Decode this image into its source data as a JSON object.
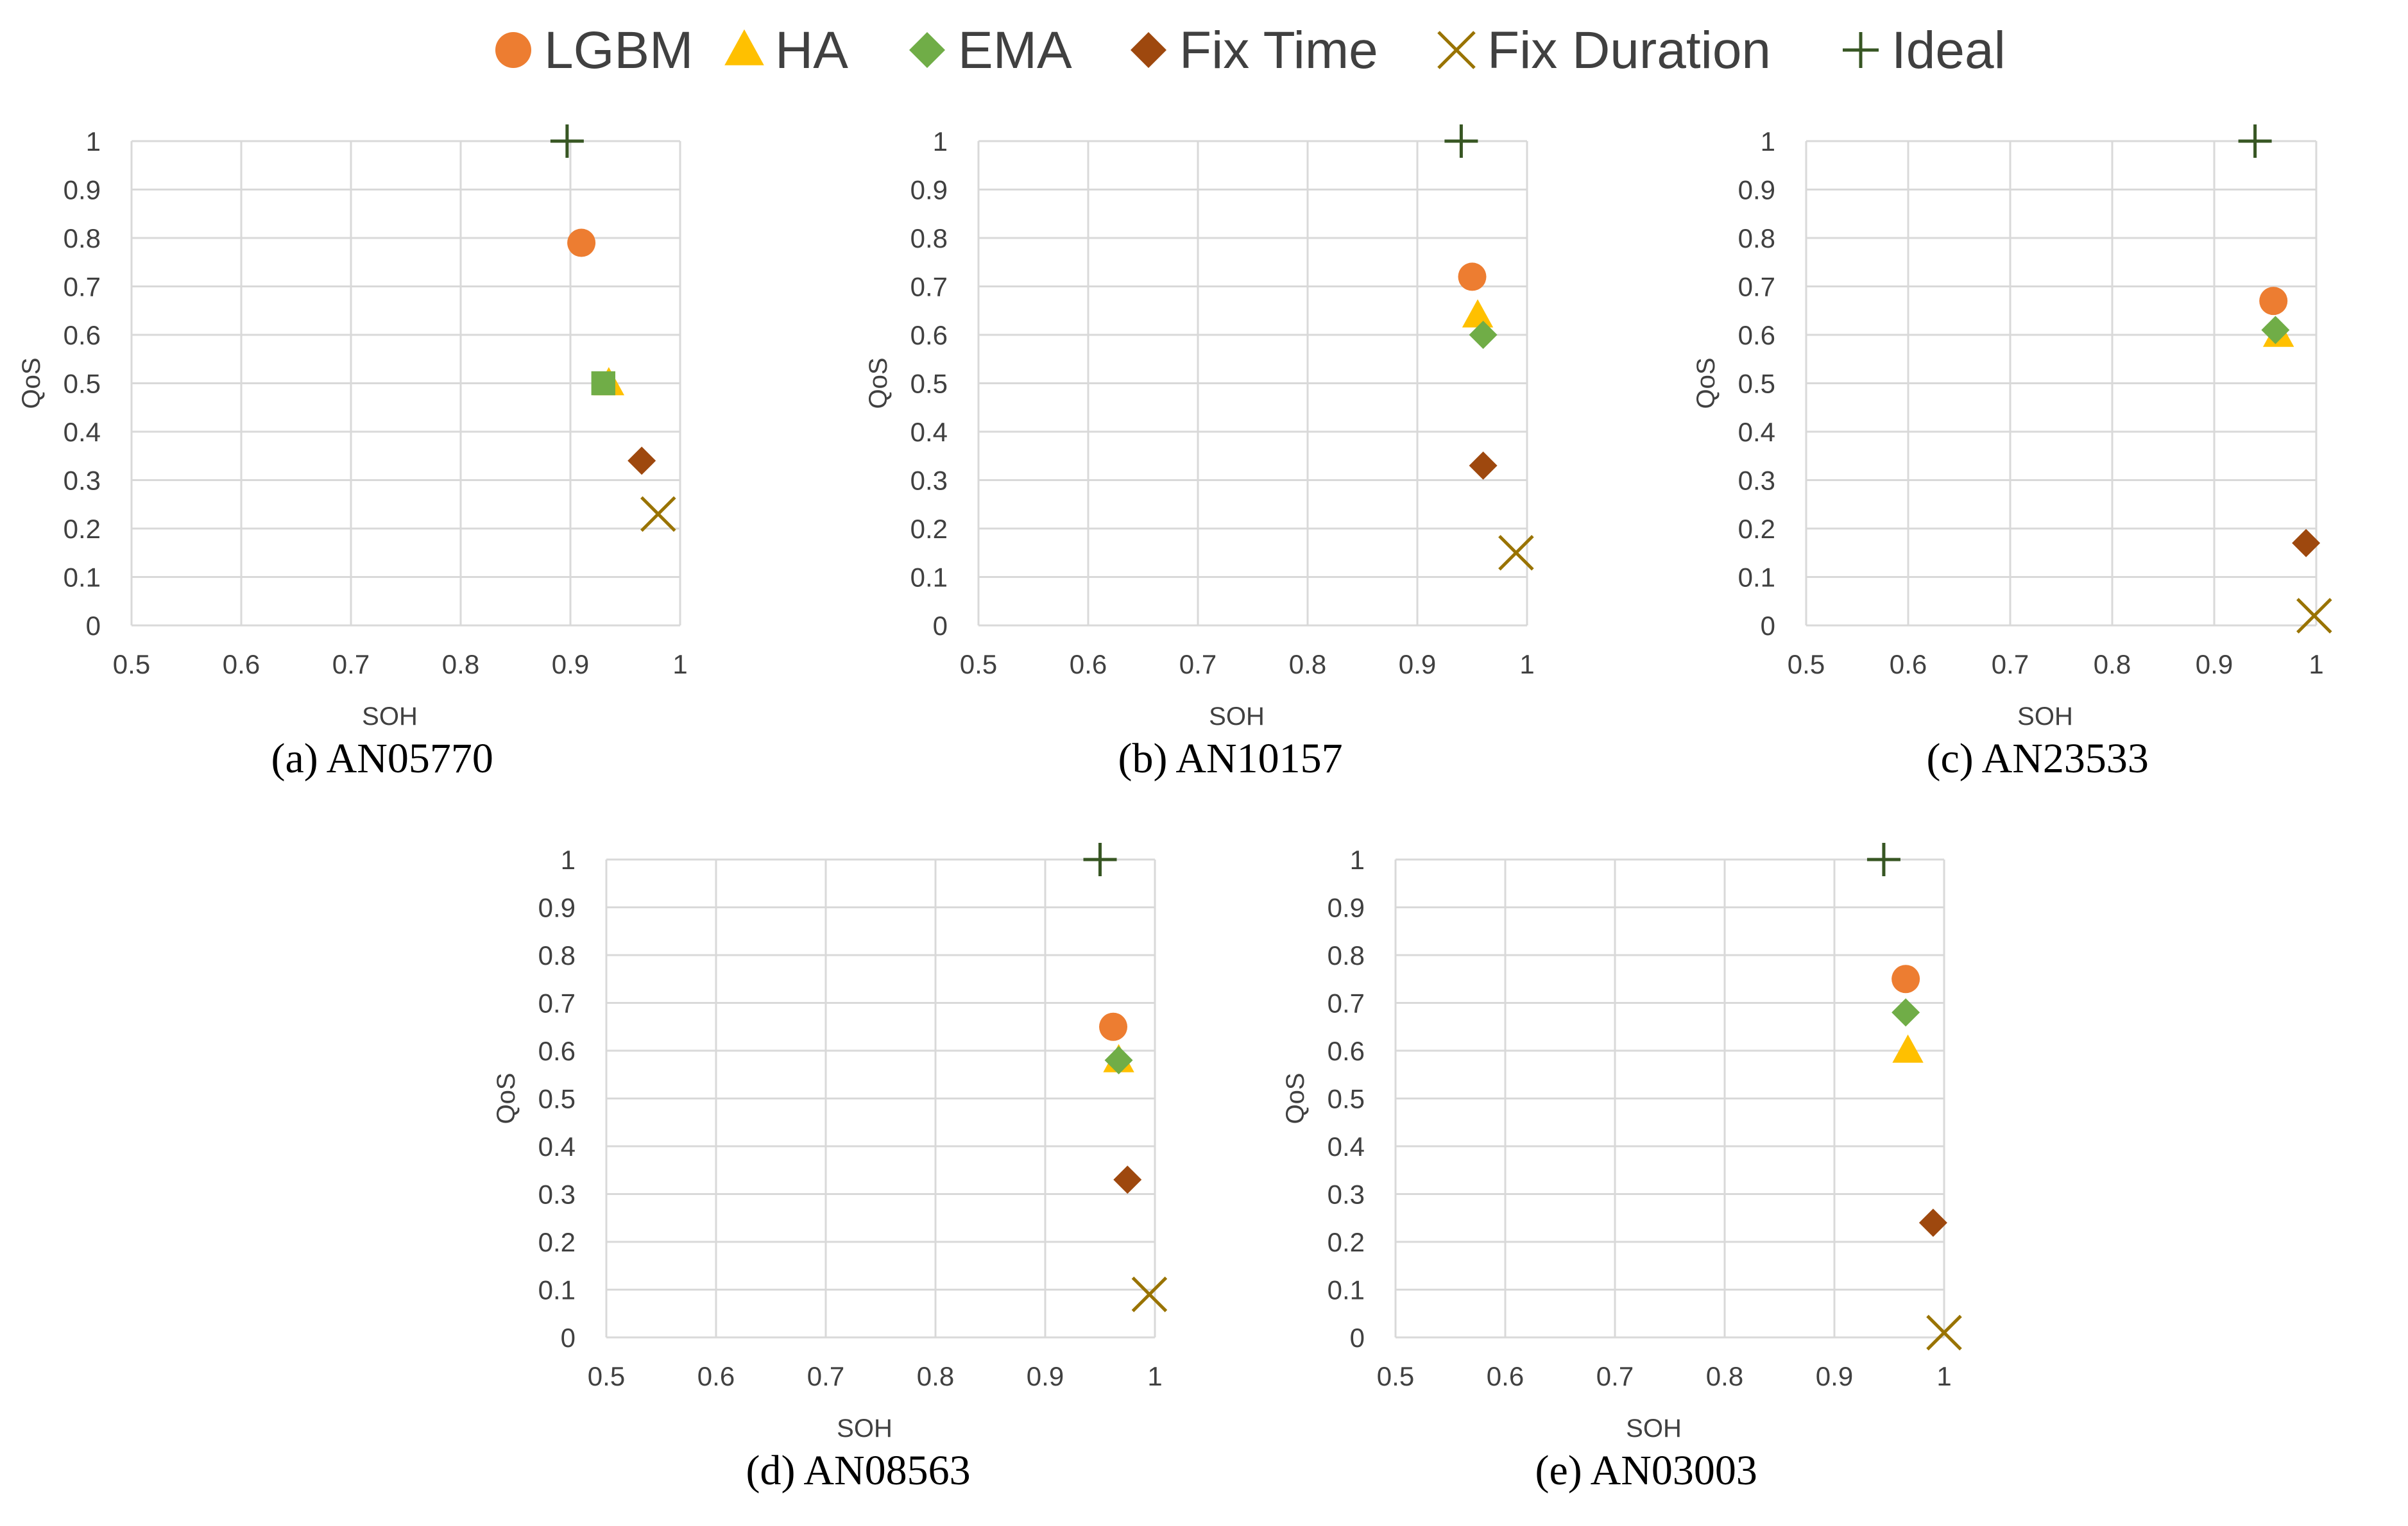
{
  "legend": [
    {
      "key": "lgbm",
      "label": "LGBM",
      "marker": "circle",
      "color": "#ED7D31"
    },
    {
      "key": "ha",
      "label": "HA",
      "marker": "triangle",
      "color": "#FFC000"
    },
    {
      "key": "ema",
      "label": "EMA",
      "marker": "diamond",
      "color": "#70AD47"
    },
    {
      "key": "fixtime",
      "label": "Fix Time",
      "marker": "diamond",
      "color": "#9E480E"
    },
    {
      "key": "fixduration",
      "label": "Fix Duration",
      "marker": "x",
      "color": "#997300"
    },
    {
      "key": "ideal",
      "label": "Ideal",
      "marker": "plus",
      "color": "#375623"
    }
  ],
  "chart_data": [
    {
      "type": "scatter",
      "caption": "(a) AN05770",
      "xlabel": "SOH",
      "ylabel": "QoS",
      "xlim": [
        0.5,
        1
      ],
      "ylim": [
        0,
        1
      ],
      "xticks": [
        "0.5",
        "0.6",
        "0.7",
        "0.8",
        "0.9",
        "1"
      ],
      "yticks": [
        "0",
        "0.1",
        "0.2",
        "0.3",
        "0.4",
        "0.5",
        "0.6",
        "0.7",
        "0.8",
        "0.9",
        "1"
      ],
      "points": [
        {
          "series": "ideal",
          "x": 0.897,
          "y": 1.0
        },
        {
          "series": "lgbm",
          "x": 0.91,
          "y": 0.79
        },
        {
          "series": "ha",
          "x": 0.935,
          "y": 0.5
        },
        {
          "series": "ema",
          "x": 0.93,
          "y": 0.5,
          "marker": "square"
        },
        {
          "series": "fixtime",
          "x": 0.965,
          "y": 0.34
        },
        {
          "series": "fixduration",
          "x": 0.98,
          "y": 0.23
        }
      ]
    },
    {
      "type": "scatter",
      "caption": "(b) AN10157",
      "xlabel": "SOH",
      "ylabel": "QoS",
      "xlim": [
        0.5,
        1
      ],
      "ylim": [
        0,
        1
      ],
      "xticks": [
        "0.5",
        "0.6",
        "0.7",
        "0.8",
        "0.9",
        "1"
      ],
      "yticks": [
        "0",
        "0.1",
        "0.2",
        "0.3",
        "0.4",
        "0.5",
        "0.6",
        "0.7",
        "0.8",
        "0.9",
        "1"
      ],
      "points": [
        {
          "series": "ideal",
          "x": 0.94,
          "y": 1.0
        },
        {
          "series": "lgbm",
          "x": 0.95,
          "y": 0.72
        },
        {
          "series": "ha",
          "x": 0.955,
          "y": 0.64
        },
        {
          "series": "ema",
          "x": 0.96,
          "y": 0.6
        },
        {
          "series": "fixtime",
          "x": 0.96,
          "y": 0.33
        },
        {
          "series": "fixduration",
          "x": 0.99,
          "y": 0.15
        }
      ]
    },
    {
      "type": "scatter",
      "caption": "(c) AN23533",
      "xlabel": "SOH",
      "ylabel": "QoS",
      "xlim": [
        0.5,
        1
      ],
      "ylim": [
        0,
        1
      ],
      "xticks": [
        "0.5",
        "0.6",
        "0.7",
        "0.8",
        "0.9",
        "1"
      ],
      "yticks": [
        "0",
        "0.1",
        "0.2",
        "0.3",
        "0.4",
        "0.5",
        "0.6",
        "0.7",
        "0.8",
        "0.9",
        "1"
      ],
      "points": [
        {
          "series": "ideal",
          "x": 0.94,
          "y": 1.0
        },
        {
          "series": "lgbm",
          "x": 0.958,
          "y": 0.67
        },
        {
          "series": "ha",
          "x": 0.963,
          "y": 0.6
        },
        {
          "series": "ema",
          "x": 0.96,
          "y": 0.61
        },
        {
          "series": "fixtime",
          "x": 0.99,
          "y": 0.17
        },
        {
          "series": "fixduration",
          "x": 0.998,
          "y": 0.02
        }
      ]
    },
    {
      "type": "scatter",
      "caption": "(d) AN08563",
      "xlabel": "SOH",
      "ylabel": "QoS",
      "xlim": [
        0.5,
        1
      ],
      "ylim": [
        0,
        1
      ],
      "xticks": [
        "0.5",
        "0.6",
        "0.7",
        "0.8",
        "0.9",
        "1"
      ],
      "yticks": [
        "0",
        "0.1",
        "0.2",
        "0.3",
        "0.4",
        "0.5",
        "0.6",
        "0.7",
        "0.8",
        "0.9",
        "1"
      ],
      "points": [
        {
          "series": "ideal",
          "x": 0.95,
          "y": 1.0
        },
        {
          "series": "lgbm",
          "x": 0.962,
          "y": 0.65
        },
        {
          "series": "ha",
          "x": 0.967,
          "y": 0.58
        },
        {
          "series": "ema",
          "x": 0.967,
          "y": 0.58
        },
        {
          "series": "fixtime",
          "x": 0.975,
          "y": 0.33
        },
        {
          "series": "fixduration",
          "x": 0.995,
          "y": 0.09
        }
      ]
    },
    {
      "type": "scatter",
      "caption": "(e) AN03003",
      "xlabel": "SOH",
      "ylabel": "QoS",
      "xlim": [
        0.5,
        1
      ],
      "ylim": [
        0,
        1
      ],
      "xticks": [
        "0.5",
        "0.6",
        "0.7",
        "0.8",
        "0.9",
        "1"
      ],
      "yticks": [
        "0",
        "0.1",
        "0.2",
        "0.3",
        "0.4",
        "0.5",
        "0.6",
        "0.7",
        "0.8",
        "0.9",
        "1"
      ],
      "points": [
        {
          "series": "ideal",
          "x": 0.945,
          "y": 1.0
        },
        {
          "series": "lgbm",
          "x": 0.965,
          "y": 0.75
        },
        {
          "series": "ha",
          "x": 0.967,
          "y": 0.6
        },
        {
          "series": "ema",
          "x": 0.965,
          "y": 0.68
        },
        {
          "series": "fixtime",
          "x": 0.99,
          "y": 0.24
        },
        {
          "series": "fixduration",
          "x": 1.0,
          "y": 0.01
        }
      ]
    }
  ]
}
